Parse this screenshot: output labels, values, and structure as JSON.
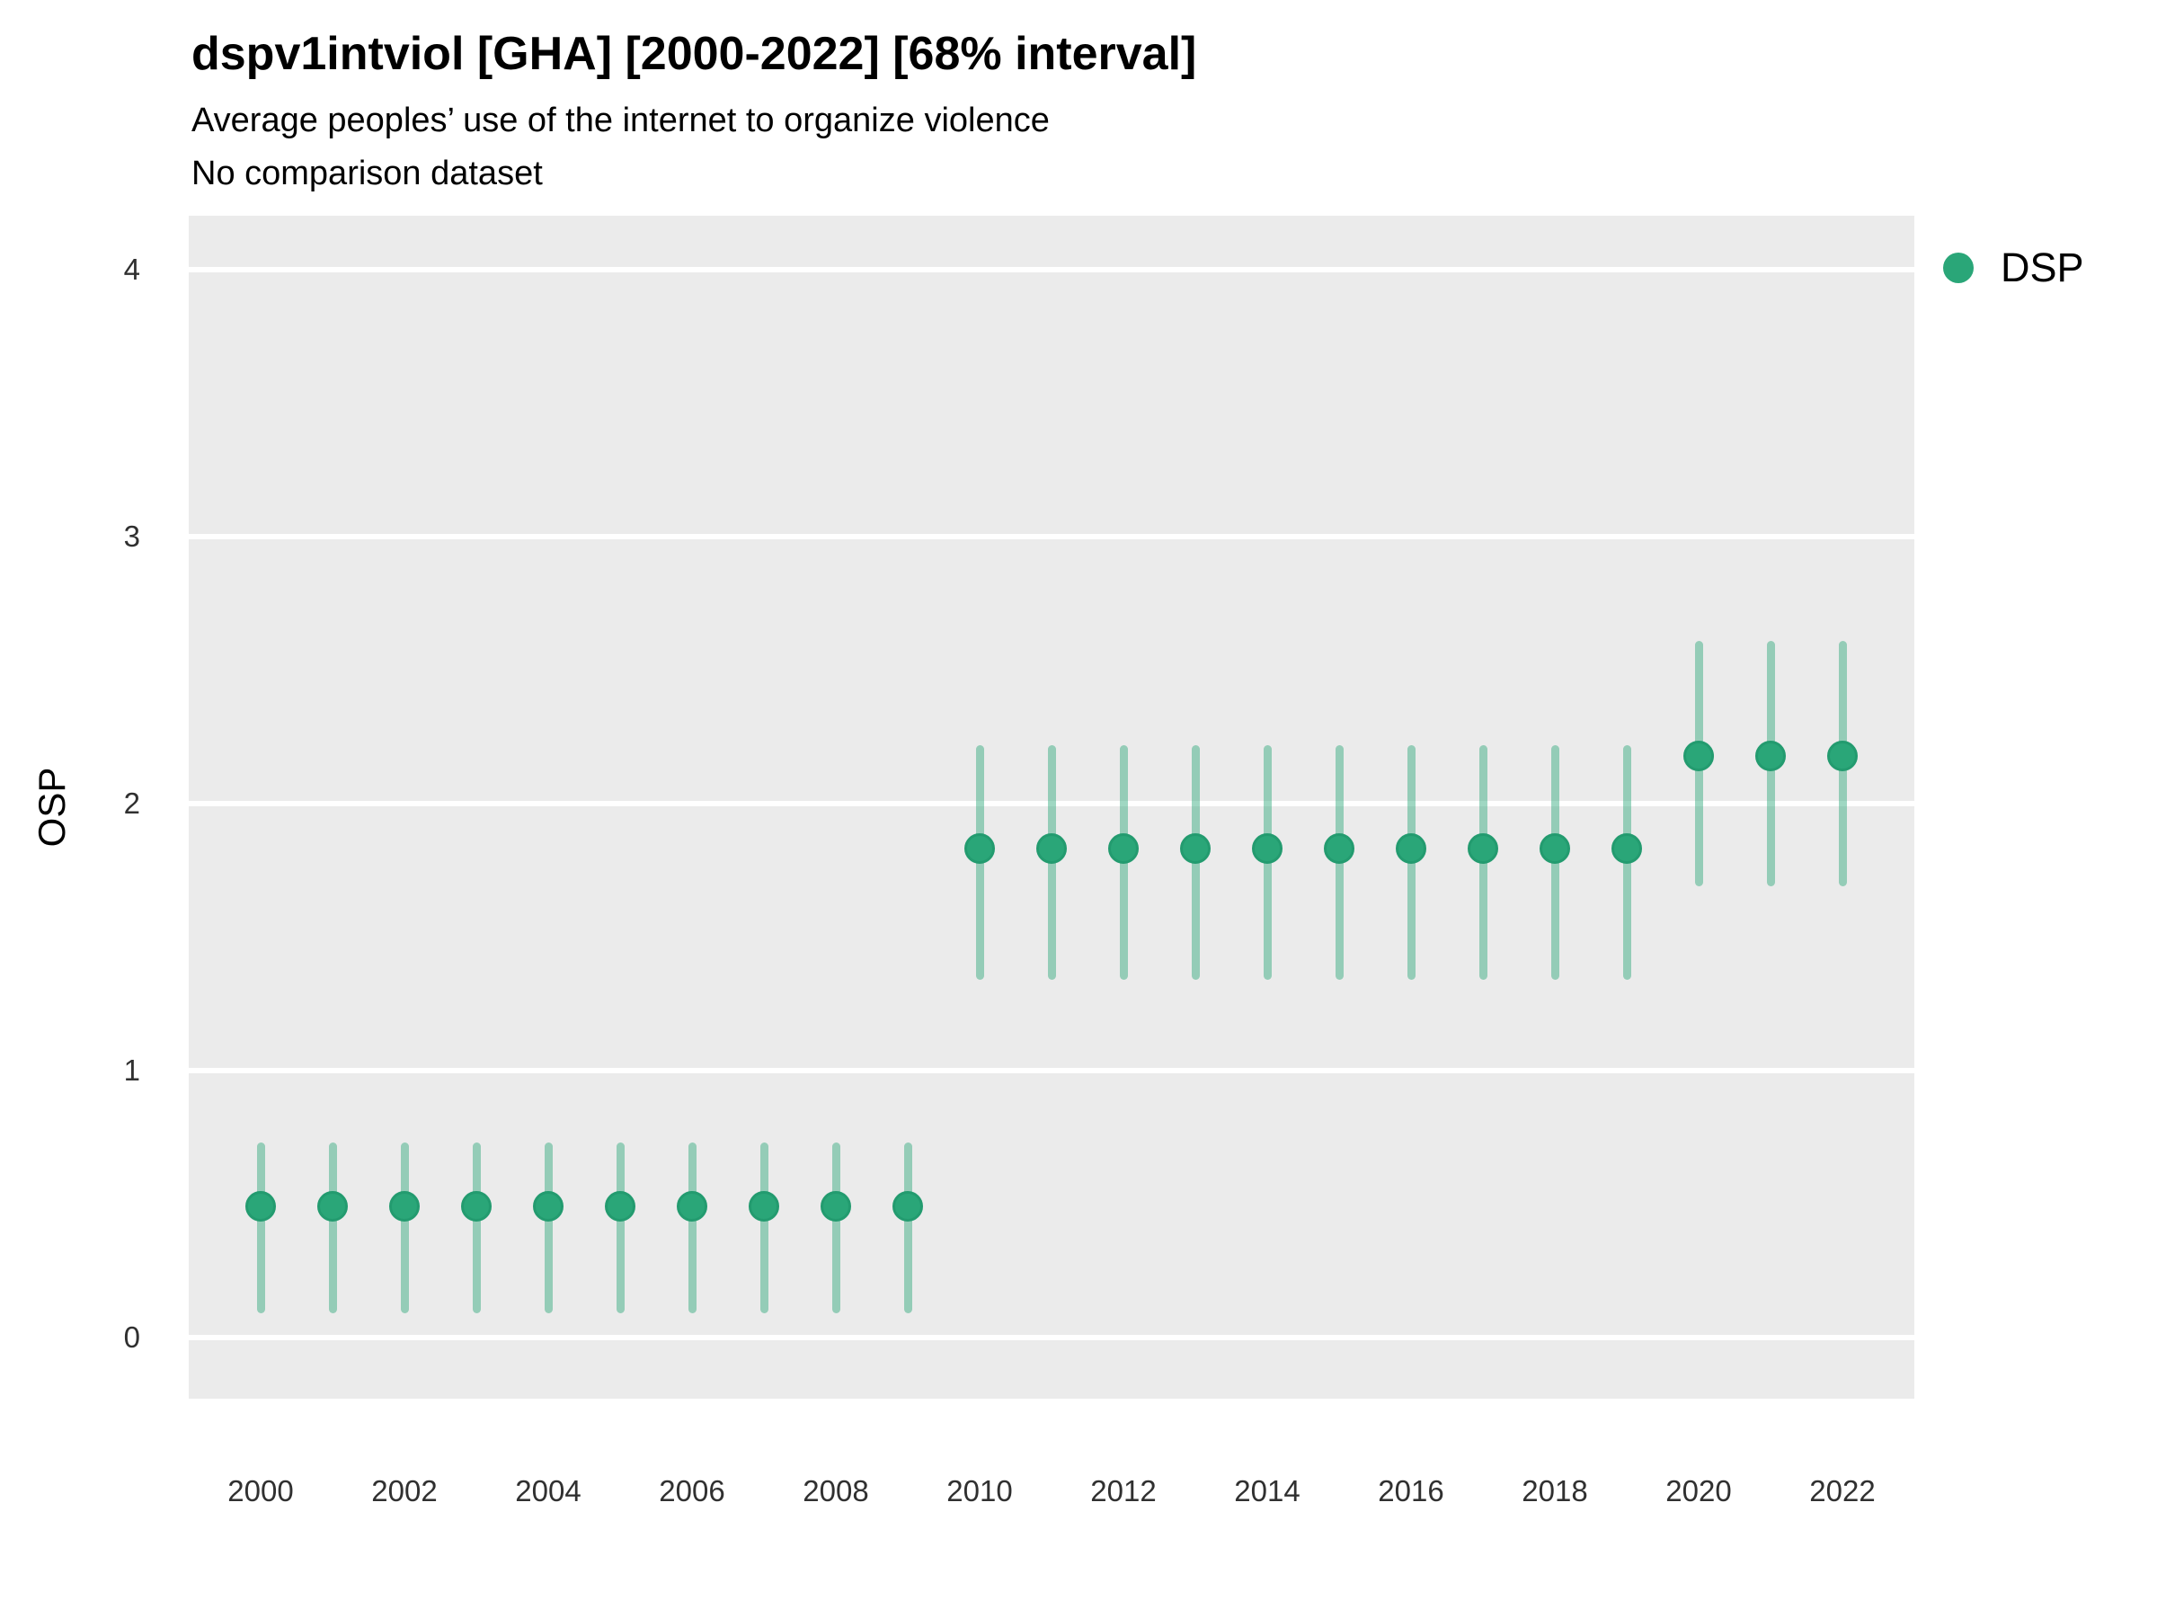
{
  "title": "dspv1intviol [GHA] [2000-2022] [68% interval]",
  "subtitle": "Average peoples’ use of the internet to organize violence",
  "note": "No comparison dataset",
  "legend": {
    "position": "right-top",
    "items": [
      {
        "label": "DSP",
        "marker": "circle-icon",
        "color": "#2AA678"
      }
    ]
  },
  "colors": {
    "panel_background": "#EBEBEB",
    "gridline": "#FFFFFF",
    "point_fill": "#2AA678",
    "point_stroke": "#239B6F",
    "interval_line": "rgba(42, 166, 120, 0.45)",
    "title_text": "#000000",
    "tick_text": "#303030"
  },
  "chart_data": {
    "type": "scatter",
    "subtype": "pointrange",
    "interval": "68%",
    "title": "dspv1intviol [GHA] [2000-2022] [68% interval]",
    "subtitle": "Average peoples’ use of the internet to organize violence",
    "note": "No comparison dataset",
    "xlabel": "",
    "ylabel": "OSP",
    "xlim": [
      1999,
      2023
    ],
    "ylim": [
      -0.23,
      4.2
    ],
    "x_ticks": [
      2000,
      2002,
      2004,
      2006,
      2008,
      2010,
      2012,
      2014,
      2016,
      2018,
      2020,
      2022
    ],
    "y_ticks": [
      0,
      1,
      2,
      3,
      4
    ],
    "grid": "major horizontal white gridlines on gray panel, no minor grid, no axis ticks",
    "legend_position": "right-top",
    "series": [
      {
        "name": "DSP",
        "color": "#2AA678",
        "x": [
          2000,
          2001,
          2002,
          2003,
          2004,
          2005,
          2006,
          2007,
          2008,
          2009,
          2010,
          2011,
          2012,
          2013,
          2014,
          2015,
          2016,
          2017,
          2018,
          2019,
          2020,
          2021,
          2022
        ],
        "y": [
          0.49,
          0.49,
          0.49,
          0.49,
          0.49,
          0.49,
          0.49,
          0.49,
          0.49,
          0.49,
          1.83,
          1.83,
          1.83,
          1.83,
          1.83,
          1.83,
          1.83,
          1.83,
          1.83,
          1.83,
          2.18,
          2.18,
          2.18
        ],
        "y_low": [
          0.09,
          0.09,
          0.09,
          0.09,
          0.09,
          0.09,
          0.09,
          0.09,
          0.09,
          0.09,
          1.34,
          1.34,
          1.34,
          1.34,
          1.34,
          1.34,
          1.34,
          1.34,
          1.34,
          1.34,
          1.69,
          1.69,
          1.69
        ],
        "y_high": [
          0.73,
          0.73,
          0.73,
          0.73,
          0.73,
          0.73,
          0.73,
          0.73,
          0.73,
          0.73,
          2.22,
          2.22,
          2.22,
          2.22,
          2.22,
          2.22,
          2.22,
          2.22,
          2.22,
          2.22,
          2.61,
          2.61,
          2.61
        ]
      }
    ]
  }
}
